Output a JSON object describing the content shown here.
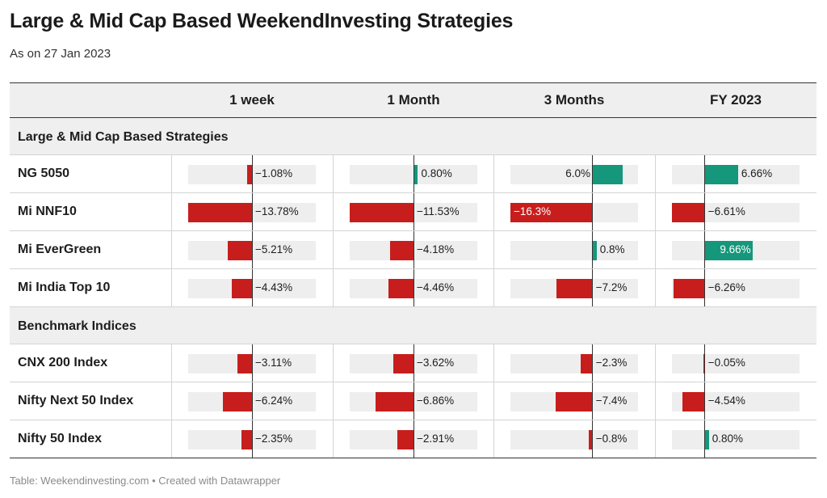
{
  "title": "Large & Mid Cap Based WeekendInvesting Strategies",
  "subtitle": "As on 27 Jan 2023",
  "footer": "Table: Weekendinvesting.com • Created with Datawrapper",
  "colors": {
    "negative": "#c71e1d",
    "positive": "#15977b",
    "track": "#eeeeee",
    "header_bg": "#efefef"
  },
  "chart_data": {
    "type": "table",
    "columns": [
      "1 week",
      "1 Month",
      "3 Months",
      "FY 2023"
    ],
    "groups": [
      {
        "name": "Large & Mid Cap Based Strategies",
        "rows": [
          {
            "name": "NG 5050",
            "values": [
              -1.08,
              0.8,
              6.0,
              6.66
            ],
            "labels": [
              "−1.08%",
              "0.80%",
              "6.0%",
              "6.66%"
            ]
          },
          {
            "name": "Mi NNF10",
            "values": [
              -13.78,
              -11.53,
              -16.3,
              -6.61
            ],
            "labels": [
              "−13.78%",
              "−11.53%",
              "−16.3%",
              "−6.61%"
            ]
          },
          {
            "name": "Mi EverGreen",
            "values": [
              -5.21,
              -4.18,
              0.8,
              9.66
            ],
            "labels": [
              "−5.21%",
              "−4.18%",
              "0.8%",
              "9.66%"
            ]
          },
          {
            "name": "Mi India Top 10",
            "values": [
              -4.43,
              -4.46,
              -7.2,
              -6.26
            ],
            "labels": [
              "−4.43%",
              "−4.46%",
              "−7.2%",
              "−6.26%"
            ]
          }
        ]
      },
      {
        "name": "Benchmark Indices",
        "rows": [
          {
            "name": "CNX 200 Index",
            "values": [
              -3.11,
              -3.62,
              -2.3,
              -0.05
            ],
            "labels": [
              "−3.11%",
              "−3.62%",
              "−2.3%",
              "−0.05%"
            ]
          },
          {
            "name": "Nifty Next 50 Index",
            "values": [
              -6.24,
              -6.86,
              -7.4,
              -4.54
            ],
            "labels": [
              "−6.24%",
              "−6.86%",
              "−7.4%",
              "−4.54%"
            ]
          },
          {
            "name": "Nifty 50 Index",
            "values": [
              -2.35,
              -2.91,
              -0.8,
              0.8
            ],
            "labels": [
              "−2.35%",
              "−2.91%",
              "−0.8%",
              "0.80%"
            ]
          }
        ]
      }
    ],
    "column_ranges": [
      [
        -13.78,
        13.78
      ],
      [
        -11.53,
        11.53
      ],
      [
        -16.3,
        9.0
      ],
      [
        -6.61,
        19.0
      ]
    ]
  }
}
